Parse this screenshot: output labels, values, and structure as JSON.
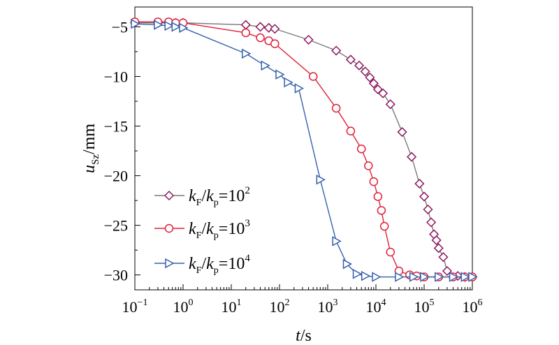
{
  "chart_data": {
    "type": "line",
    "xscale": "log",
    "xlim": [
      0.1,
      1000000
    ],
    "ylim": [
      -31.5,
      -3
    ],
    "xlabel": {
      "italic": "t",
      "rest": "/s"
    },
    "ylabel": {
      "italic": "u",
      "sub": "Sz",
      "rest": "/mm"
    },
    "x_ticks": [
      {
        "value": 0.1,
        "base": "10",
        "exp": "−1"
      },
      {
        "value": 1,
        "base": "10",
        "exp": "0"
      },
      {
        "value": 10,
        "base": "10",
        "exp": "1"
      },
      {
        "value": 100,
        "base": "10",
        "exp": "2"
      },
      {
        "value": 1000,
        "base": "10",
        "exp": "3"
      },
      {
        "value": 10000,
        "base": "10",
        "exp": "4"
      },
      {
        "value": 100000,
        "base": "10",
        "exp": "5"
      },
      {
        "value": 1000000,
        "base": "10",
        "exp": "6"
      }
    ],
    "y_ticks": [
      {
        "value": -5,
        "label": "−5"
      },
      {
        "value": -10,
        "label": "−10"
      },
      {
        "value": -15,
        "label": "−15"
      },
      {
        "value": -20,
        "label": "−20"
      },
      {
        "value": -25,
        "label": "−25"
      },
      {
        "value": -30,
        "label": "−30"
      }
    ],
    "legend_position": "bottom-left",
    "series": [
      {
        "name": "kF/kp=10^2",
        "label": {
          "k1": "k",
          "s1": "F",
          "k2": "k",
          "s2": "p",
          "eq": "=10",
          "exp": "2"
        },
        "color": "#7a7a7a",
        "marker_color": "#8e1a5e",
        "marker": "diamond",
        "points": [
          [
            0.1,
            -4.6
          ],
          [
            0.3,
            -4.6
          ],
          [
            0.5,
            -4.6
          ],
          [
            0.7,
            -4.6
          ],
          [
            1,
            -4.6
          ],
          [
            20,
            -4.8
          ],
          [
            40,
            -5.0
          ],
          [
            60,
            -5.1
          ],
          [
            80,
            -5.2
          ],
          [
            400,
            -6.3
          ],
          [
            1500,
            -7.4
          ],
          [
            3000,
            -8.3
          ],
          [
            4500,
            -8.9
          ],
          [
            6000,
            -9.5
          ],
          [
            7500,
            -10.1
          ],
          [
            9000,
            -10.7
          ],
          [
            11000,
            -11.3
          ],
          [
            14000,
            -11.7
          ],
          [
            20000,
            -12.8
          ],
          [
            35000,
            -15.6
          ],
          [
            55000,
            -18.1
          ],
          [
            80000,
            -20.8
          ],
          [
            100000,
            -22.1
          ],
          [
            120000,
            -23.4
          ],
          [
            140000,
            -24.7
          ],
          [
            160000,
            -25.9
          ],
          [
            180000,
            -26.5
          ],
          [
            200000,
            -27.3
          ],
          [
            250000,
            -28.2
          ],
          [
            300000,
            -29.6
          ],
          [
            500000,
            -30.1
          ],
          [
            700000,
            -30.2
          ],
          [
            1000000,
            -30.2
          ]
        ]
      },
      {
        "name": "kF/kp=10^3",
        "label": {
          "k1": "k",
          "s1": "F",
          "k2": "k",
          "s2": "p",
          "eq": "=10",
          "exp": "3"
        },
        "color": "#e0203a",
        "marker_color": "#e0203a",
        "marker": "circle",
        "points": [
          [
            0.1,
            -4.5
          ],
          [
            0.3,
            -4.5
          ],
          [
            0.5,
            -4.5
          ],
          [
            0.7,
            -4.6
          ],
          [
            1,
            -4.6
          ],
          [
            20,
            -5.6
          ],
          [
            40,
            -6.1
          ],
          [
            60,
            -6.4
          ],
          [
            80,
            -6.7
          ],
          [
            500,
            -10.0
          ],
          [
            1500,
            -13.2
          ],
          [
            3000,
            -15.5
          ],
          [
            5000,
            -17.3
          ],
          [
            7000,
            -19.0
          ],
          [
            9000,
            -20.6
          ],
          [
            11000,
            -22.1
          ],
          [
            13000,
            -23.5
          ],
          [
            15000,
            -25.1
          ],
          [
            20000,
            -27.7
          ],
          [
            30000,
            -29.6
          ],
          [
            50000,
            -30.0
          ],
          [
            70000,
            -30.1
          ],
          [
            100000,
            -30.2
          ],
          [
            200000,
            -30.2
          ],
          [
            400000,
            -30.2
          ],
          [
            700000,
            -30.2
          ],
          [
            1000000,
            -30.2
          ]
        ]
      },
      {
        "name": "kF/kp=10^4",
        "label": {
          "k1": "k",
          "s1": "F",
          "k2": "k",
          "s2": "p",
          "eq": "=10",
          "exp": "4"
        },
        "color": "#3560ad",
        "marker_color": "#3560ad",
        "marker": "triangle-right",
        "points": [
          [
            0.1,
            -4.7
          ],
          [
            0.3,
            -4.8
          ],
          [
            0.5,
            -4.9
          ],
          [
            0.7,
            -5.0
          ],
          [
            1,
            -5.1
          ],
          [
            20,
            -7.7
          ],
          [
            50,
            -8.9
          ],
          [
            100,
            -9.8
          ],
          [
            150,
            -10.6
          ],
          [
            250,
            -11.2
          ],
          [
            700,
            -20.4
          ],
          [
            1500,
            -26.6
          ],
          [
            2500,
            -28.9
          ],
          [
            4000,
            -29.9
          ],
          [
            6000,
            -30.1
          ],
          [
            10000,
            -30.2
          ],
          [
            30000,
            -30.2
          ],
          [
            60000,
            -30.2
          ],
          [
            100000,
            -30.2
          ],
          [
            200000,
            -30.2
          ],
          [
            400000,
            -30.2
          ],
          [
            700000,
            -30.2
          ],
          [
            1000000,
            -30.2
          ]
        ]
      }
    ]
  }
}
